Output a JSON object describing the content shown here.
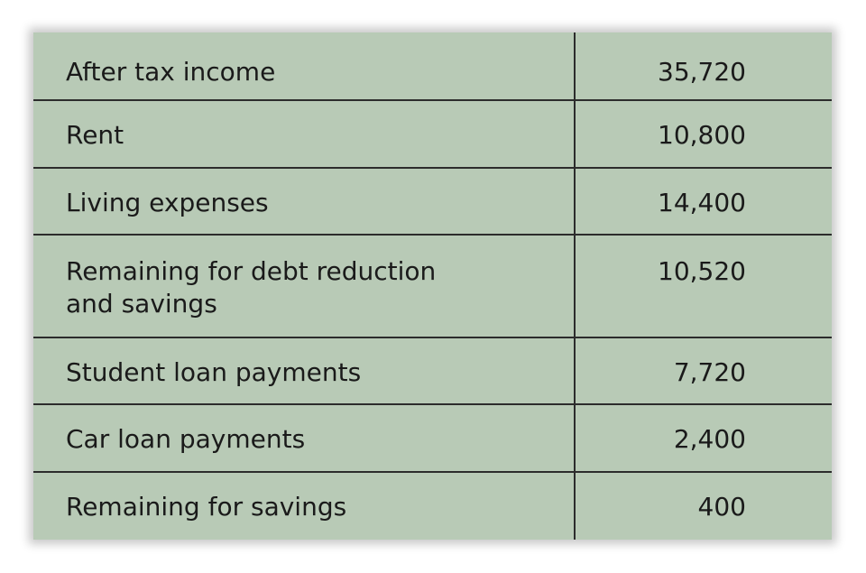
{
  "budget_table": {
    "rows": [
      {
        "label": "After tax income",
        "value": "35,720"
      },
      {
        "label": "Rent",
        "value": "10,800"
      },
      {
        "label": "Living expenses",
        "value": "14,400"
      },
      {
        "label": "Remaining for debt reduction and savings",
        "label_line1": "Remaining for debt reduction",
        "label_line2": "and savings",
        "value": "10,520"
      },
      {
        "label": "Student loan payments",
        "value": "7,720"
      },
      {
        "label": "Car loan payments",
        "value": "2,400"
      },
      {
        "label": "Remaining for savings",
        "value": "400"
      }
    ]
  },
  "colors": {
    "table_background": "#b8cab6",
    "rule_color": "#2c2c2c",
    "text_color": "#1a1a1a"
  }
}
